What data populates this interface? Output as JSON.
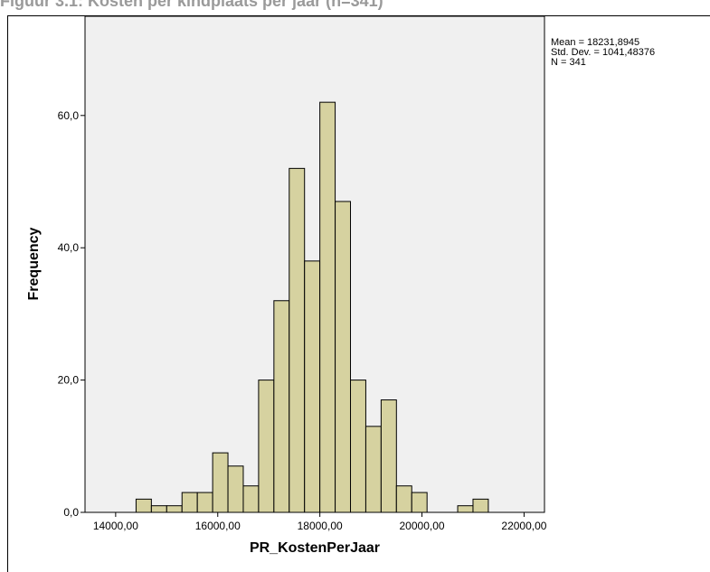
{
  "page": {
    "title": "Figuur 3.1: Kosten per kindplaats per jaar (n=341)"
  },
  "stats": {
    "mean": "Mean = 18231,8945",
    "std": "Std. Dev. = 1041,48376",
    "n": "N = 341"
  },
  "chart_data": {
    "type": "bar",
    "subtype": "histogram",
    "xlabel": "PR_KostenPerJaar",
    "ylabel": "Frequency",
    "xlim": [
      13400,
      22400
    ],
    "ylim": [
      0,
      75
    ],
    "x_ticks": [
      14000,
      16000,
      18000,
      20000,
      22000
    ],
    "x_tick_labels": [
      "14000,00",
      "16000,00",
      "18000,00",
      "20000,00",
      "22000,00"
    ],
    "y_ticks": [
      0,
      20,
      40,
      60
    ],
    "y_tick_labels": [
      "0,0",
      "20,0",
      "40,0",
      "60,0"
    ],
    "bin_width": 300,
    "bin_starts": [
      14400,
      14700,
      15000,
      15300,
      15600,
      15900,
      16200,
      16500,
      16800,
      17100,
      17400,
      17700,
      18000,
      18300,
      18600,
      18900,
      19200,
      19500,
      19800,
      20100,
      20400,
      20700,
      21000,
      21300
    ],
    "values": [
      2,
      1,
      1,
      3,
      3,
      9,
      7,
      4,
      20,
      32,
      52,
      38,
      62,
      47,
      20,
      13,
      17,
      4,
      3,
      0,
      0,
      1,
      2,
      0
    ],
    "bar_color": "#d6d2a0",
    "plot_background": "#f0f0f0",
    "grid": false
  }
}
